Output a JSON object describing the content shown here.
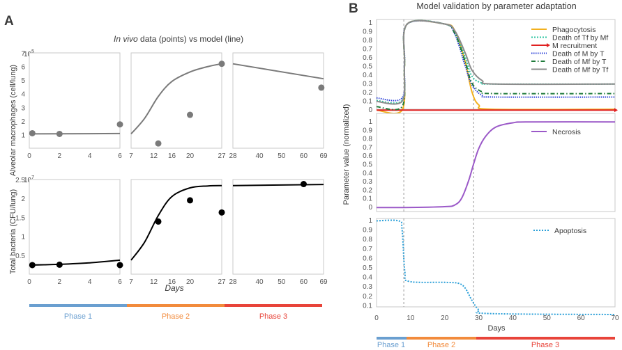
{
  "panel_a": {
    "letter": "A",
    "title_italic": "In vivo",
    "title_rest": " data (points) vs model (line)",
    "xlabel": "Days",
    "top_ylabel": "Alveolar macrophages (cell/lung)",
    "top_exponent": "10",
    "top_exponent_power": "5",
    "bottom_ylabel": "Total bacteria (CFU/lung)",
    "bottom_exponent": "10",
    "bottom_exponent_power": "7",
    "phases": [
      {
        "label": "Phase 1",
        "color": "#6a9fd0"
      },
      {
        "label": "Phase 2",
        "color": "#f28b3c"
      },
      {
        "label": "Phase 3",
        "color": "#e8443a"
      }
    ]
  },
  "panel_b": {
    "letter": "B",
    "title": "Model validation by parameter adaptation",
    "ylabel": "Parameter value (normalized)",
    "xlabel": "Days",
    "phases": [
      {
        "label": "Phase 1",
        "color": "#6a9fd0"
      },
      {
        "label": "Phase 2",
        "color": "#f28b3c"
      },
      {
        "label": "Phase 3",
        "color": "#e8443a"
      }
    ]
  },
  "chart_data": [
    {
      "type": "scatter+line",
      "panel": "A-top",
      "title": "Alveolar macrophages (cell/lung)",
      "unit_scale": "10^5",
      "yticks": [
        1,
        2,
        3,
        4,
        5,
        6,
        7
      ],
      "ylim": [
        0,
        7
      ],
      "segments": [
        {
          "xticks": [
            0,
            2,
            4,
            6
          ],
          "xlim": [
            0,
            6
          ],
          "points": [
            [
              0.2,
              1.1
            ],
            [
              2,
              1.05
            ],
            [
              6,
              1.75
            ]
          ],
          "model": [
            [
              0,
              1.05
            ],
            [
              6,
              1.08
            ]
          ]
        },
        {
          "xticks": [
            7,
            12,
            16,
            20,
            27
          ],
          "xlim": [
            7,
            27
          ],
          "points": [
            [
              13,
              0.35
            ],
            [
              20,
              2.45
            ],
            [
              27,
              6.2
            ]
          ],
          "model": [
            [
              7,
              1.05
            ],
            [
              10,
              2.2
            ],
            [
              13,
              3.8
            ],
            [
              16,
              4.9
            ],
            [
              20,
              5.6
            ],
            [
              24,
              6.0
            ],
            [
              27,
              6.2
            ]
          ]
        },
        {
          "xticks": [
            28,
            40,
            50,
            60,
            69
          ],
          "xlim": [
            28,
            69
          ],
          "points": [
            [
              68,
              4.45
            ]
          ],
          "model": [
            [
              28,
              6.2
            ],
            [
              69,
              5.1
            ]
          ]
        }
      ]
    },
    {
      "type": "scatter+line",
      "panel": "A-bottom",
      "title": "Total bacteria (CFU/lung)",
      "unit_scale": "10^7",
      "yticks": [
        0.5,
        1,
        1.5,
        2,
        2.5
      ],
      "ylim": [
        0,
        2.5
      ],
      "segments": [
        {
          "xticks": [
            0,
            2,
            4,
            6
          ],
          "xlim": [
            0,
            6
          ],
          "points": [
            [
              0.2,
              0.24
            ],
            [
              2,
              0.25
            ],
            [
              6,
              0.24
            ]
          ],
          "model": [
            [
              0,
              0.24
            ],
            [
              2,
              0.26
            ],
            [
              4,
              0.3
            ],
            [
              6,
              0.37
            ]
          ]
        },
        {
          "xticks": [
            7,
            12,
            16,
            20,
            27
          ],
          "xlim": [
            7,
            27
          ],
          "points": [
            [
              13,
              1.39
            ],
            [
              20,
              1.95
            ],
            [
              27,
              1.63
            ]
          ],
          "model": [
            [
              7,
              0.37
            ],
            [
              10,
              0.85
            ],
            [
              13,
              1.55
            ],
            [
              16,
              2.05
            ],
            [
              20,
              2.28
            ],
            [
              24,
              2.33
            ],
            [
              27,
              2.34
            ]
          ]
        },
        {
          "xticks": [
            28,
            40,
            50,
            60,
            69
          ],
          "xlim": [
            28,
            69
          ],
          "points": [
            [
              60,
              2.38
            ]
          ],
          "model": [
            [
              28,
              2.34
            ],
            [
              69,
              2.37
            ]
          ]
        }
      ]
    },
    {
      "type": "line",
      "panel": "B-top",
      "xlim": [
        0,
        70
      ],
      "ylim": [
        0,
        1
      ],
      "yticks": [
        0,
        0.1,
        0.2,
        0.3,
        0.4,
        0.5,
        0.6,
        0.7,
        0.8,
        0.9,
        1
      ],
      "series": [
        {
          "name": "Phagocytosis",
          "color": "#f2b01e",
          "dash": "solid",
          "points": [
            [
              0,
              -0.01
            ],
            [
              7.5,
              -0.01
            ],
            [
              8.2,
              0.5
            ],
            [
              9,
              0.98
            ],
            [
              20,
              0.98
            ],
            [
              23,
              0.9
            ],
            [
              26,
              0.55
            ],
            [
              28,
              0.2
            ],
            [
              30,
              0.05
            ],
            [
              34,
              0.0
            ],
            [
              70,
              0.0
            ]
          ]
        },
        {
          "name": "Death of Tf by Mf",
          "color": "#2ec4a0",
          "dash": "2,2",
          "points": [
            [
              0,
              0.1
            ],
            [
              7.5,
              0.1
            ],
            [
              8.2,
              0.5
            ],
            [
              9,
              0.98
            ],
            [
              20,
              0.98
            ],
            [
              23,
              0.88
            ],
            [
              26,
              0.6
            ],
            [
              28,
              0.38
            ],
            [
              31,
              0.3
            ],
            [
              35,
              0.29
            ],
            [
              70,
              0.29
            ]
          ]
        },
        {
          "name": "M recruitment",
          "color": "#e02020",
          "dash": "solid",
          "points": [
            [
              0,
              -0.01
            ],
            [
              70,
              -0.01
            ]
          ]
        },
        {
          "name": "Death of M by T",
          "color": "#2a3fd8",
          "dash": "1.5,1.5",
          "points": [
            [
              0,
              0.13
            ],
            [
              7.5,
              0.13
            ],
            [
              8.2,
              0.55
            ],
            [
              9,
              0.98
            ],
            [
              20,
              0.98
            ],
            [
              23,
              0.86
            ],
            [
              26,
              0.5
            ],
            [
              28,
              0.28
            ],
            [
              31,
              0.16
            ],
            [
              35,
              0.14
            ],
            [
              70,
              0.14
            ]
          ]
        },
        {
          "name": "Death of Mf by T",
          "color": "#1e7a3a",
          "dash": "6,3,1.5,3",
          "points": [
            [
              0,
              0.03
            ],
            [
              7.5,
              0.03
            ],
            [
              8.2,
              0.5
            ],
            [
              9,
              0.98
            ],
            [
              20,
              0.98
            ],
            [
              23,
              0.87
            ],
            [
              26,
              0.55
            ],
            [
              28,
              0.3
            ],
            [
              31,
              0.2
            ],
            [
              35,
              0.18
            ],
            [
              70,
              0.18
            ]
          ]
        },
        {
          "name": "Death of Mf by Tf",
          "color": "#8c8c8c",
          "dash": "solid",
          "points": [
            [
              0,
              0.09
            ],
            [
              7.5,
              0.09
            ],
            [
              8.2,
              0.5
            ],
            [
              9,
              0.98
            ],
            [
              20,
              0.98
            ],
            [
              23,
              0.9
            ],
            [
              26,
              0.65
            ],
            [
              28,
              0.45
            ],
            [
              31,
              0.33
            ],
            [
              35,
              0.29
            ],
            [
              70,
              0.29
            ]
          ]
        }
      ]
    },
    {
      "type": "line",
      "panel": "B-middle",
      "xlim": [
        0,
        70
      ],
      "ylim": [
        0,
        1
      ],
      "yticks": [
        0,
        0.1,
        0.2,
        0.3,
        0.4,
        0.5,
        0.6,
        0.7,
        0.8,
        0.9,
        1
      ],
      "series": [
        {
          "name": "Necrosis",
          "color": "#9b59c8",
          "dash": "solid",
          "points": [
            [
              0,
              -0.01
            ],
            [
              8,
              -0.01
            ],
            [
              20,
              0.0
            ],
            [
              23,
              0.02
            ],
            [
              25,
              0.1
            ],
            [
              27,
              0.3
            ],
            [
              28.5,
              0.5
            ],
            [
              30,
              0.68
            ],
            [
              32,
              0.82
            ],
            [
              35,
              0.93
            ],
            [
              40,
              0.98
            ],
            [
              45,
              0.99
            ],
            [
              70,
              0.99
            ]
          ]
        }
      ]
    },
    {
      "type": "line",
      "panel": "B-bottom",
      "xlim": [
        0,
        70
      ],
      "ylim": [
        0,
        1
      ],
      "yticks": [
        0.1,
        0.2,
        0.3,
        0.4,
        0.5,
        0.6,
        0.7,
        0.8,
        0.9,
        1
      ],
      "xticks": [
        0,
        10,
        20,
        30,
        40,
        50,
        60,
        70
      ],
      "series": [
        {
          "name": "Apoptosis",
          "color": "#2a9fd8",
          "dash": "2,2",
          "points": [
            [
              0,
              0.99
            ],
            [
              6.5,
              0.99
            ],
            [
              7.5,
              0.9
            ],
            [
              8.3,
              0.45
            ],
            [
              9.5,
              0.35
            ],
            [
              20,
              0.34
            ],
            [
              24,
              0.33
            ],
            [
              26,
              0.28
            ],
            [
              28,
              0.15
            ],
            [
              30,
              0.05
            ],
            [
              33,
              0.01
            ],
            [
              70,
              0.0
            ]
          ]
        }
      ]
    }
  ]
}
